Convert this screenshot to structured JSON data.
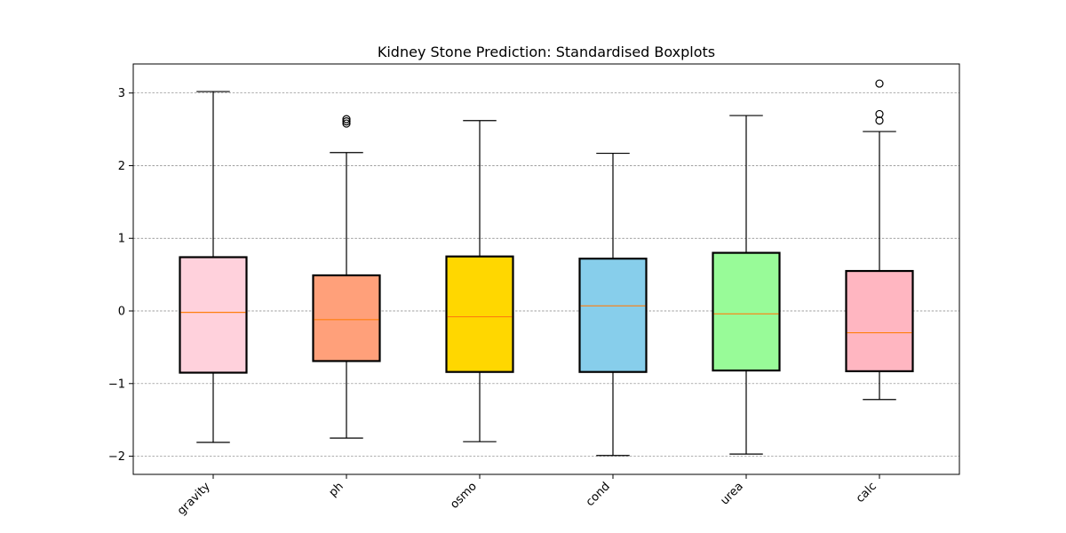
{
  "chart_data": {
    "type": "boxplot",
    "title": "Kidney Stone Prediction: Standardised Boxplots",
    "xlabel": "",
    "ylabel": "",
    "ylim": [
      -2.25,
      3.4
    ],
    "yticks": [
      -2,
      -1,
      0,
      1,
      2,
      3
    ],
    "ytick_labels": [
      "−2",
      "−1",
      "0",
      "1",
      "2",
      "3"
    ],
    "grid": "y-dashed",
    "categories": [
      "gravity",
      "ph",
      "osmo",
      "cond",
      "urea",
      "calc"
    ],
    "boxes": [
      {
        "name": "gravity",
        "whisker_low": -1.81,
        "q1": -0.85,
        "median": -0.02,
        "q3": 0.74,
        "whisker_high": 3.02,
        "outliers": [],
        "color": "#FFD1DC"
      },
      {
        "name": "ph",
        "whisker_low": -1.75,
        "q1": -0.69,
        "median": -0.12,
        "q3": 0.49,
        "whisker_high": 2.18,
        "outliers": [
          2.58,
          2.61,
          2.64
        ],
        "color": "#FFA07A"
      },
      {
        "name": "osmo",
        "whisker_low": -1.8,
        "q1": -0.84,
        "median": -0.08,
        "q3": 0.75,
        "whisker_high": 2.62,
        "outliers": [],
        "color": "#FFD700"
      },
      {
        "name": "cond",
        "whisker_low": -1.99,
        "q1": -0.84,
        "median": 0.07,
        "q3": 0.72,
        "whisker_high": 2.17,
        "outliers": [],
        "color": "#87CEEB"
      },
      {
        "name": "urea",
        "whisker_low": -1.97,
        "q1": -0.82,
        "median": -0.04,
        "q3": 0.8,
        "whisker_high": 2.69,
        "outliers": [],
        "color": "#98FB98"
      },
      {
        "name": "calc",
        "whisker_low": -1.22,
        "q1": -0.83,
        "median": -0.3,
        "q3": 0.55,
        "whisker_high": 2.47,
        "outliers": [
          2.62,
          2.71,
          3.13
        ],
        "color": "#FFB6C1"
      }
    ],
    "median_color": "#FF7F0E"
  }
}
